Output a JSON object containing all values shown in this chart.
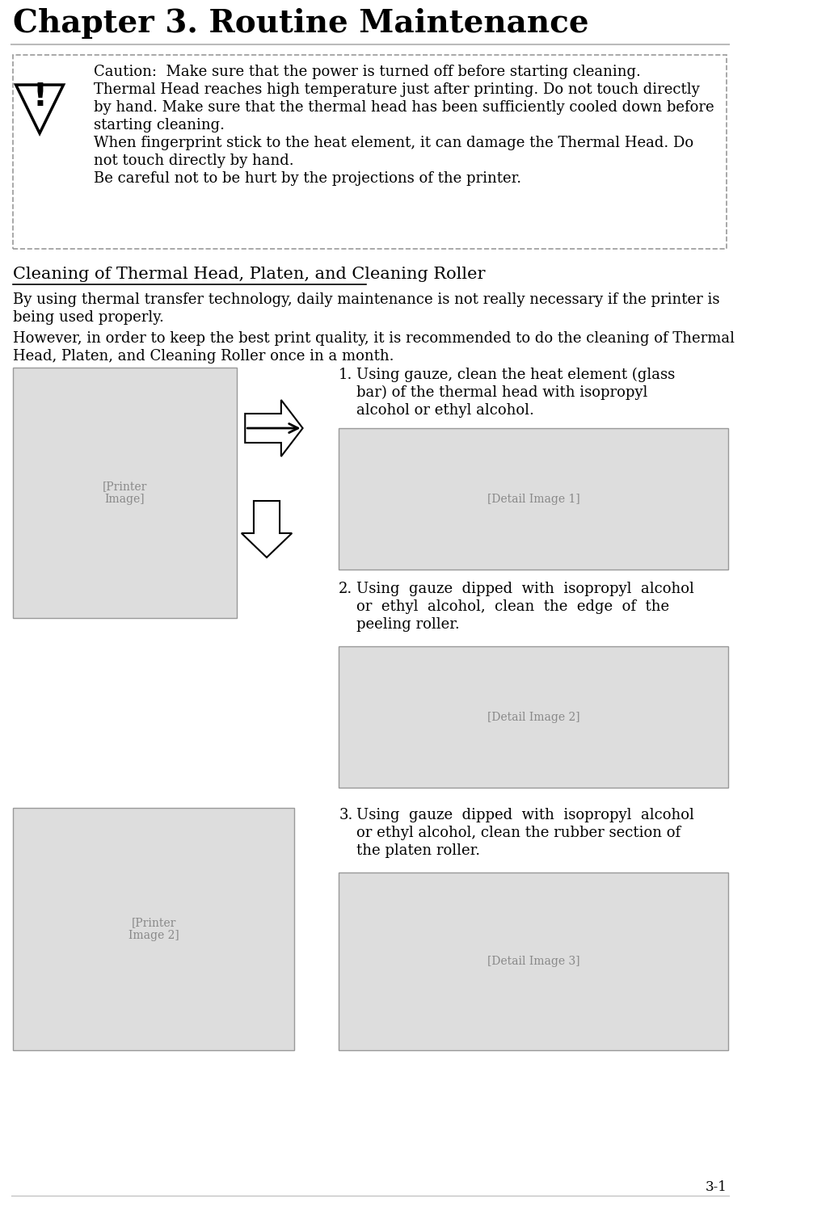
{
  "title": "Chapter 3. Routine Maintenance",
  "title_fontsize": 28,
  "title_font": "serif",
  "bg_color": "#ffffff",
  "header_line_color": "#aaaaaa",
  "caution_box": {
    "text_lines": [
      "Caution:  Make sure that the power is turned off before starting cleaning.",
      "Thermal Head reaches high temperature just after printing. Do not touch directly",
      "by hand. Make sure that the thermal head has been sufficiently cooled down before",
      "starting cleaning.",
      "When fingerprint stick to the heat element, it can damage the Thermal Head. Do",
      "not touch directly by hand.",
      "Be careful not to be hurt by the projections of the printer."
    ],
    "fontsize": 13,
    "font": "serif",
    "border_color": "#888888",
    "border_style": "dashed"
  },
  "section_title": "Cleaning of Thermal Head, Platen, and Cleaning Roller",
  "section_title_fontsize": 15,
  "body_text_1": "By using thermal transfer technology, daily maintenance is not really necessary if the printer is\nbeing used properly.",
  "body_text_2": "However, in order to keep the best print quality, it is recommended to do the cleaning of Thermal\nHead, Platen, and Cleaning Roller once in a month.",
  "body_fontsize": 13,
  "steps": [
    {
      "num": "1.",
      "text": "Using gauze, clean the heat element (glass\nbar) of the thermal head with isopropyl\nalcohol or ethyl alcohol."
    },
    {
      "num": "2.",
      "text": "Using  gauze  dipped  with  isopropyl  alcohol\nor  ethyl  alcohol,  clean  the  edge  of  the\npeeling roller."
    },
    {
      "num": "3.",
      "text": "Using  gauze  dipped  with  isopropyl  alcohol\nor ethyl alcohol, clean the rubber section of\nthe platen roller."
    }
  ],
  "step_fontsize": 13,
  "footer_text": "3-1",
  "footer_fontsize": 12,
  "img_placeholder_color": "#dddddd",
  "img_border_color": "#999999"
}
